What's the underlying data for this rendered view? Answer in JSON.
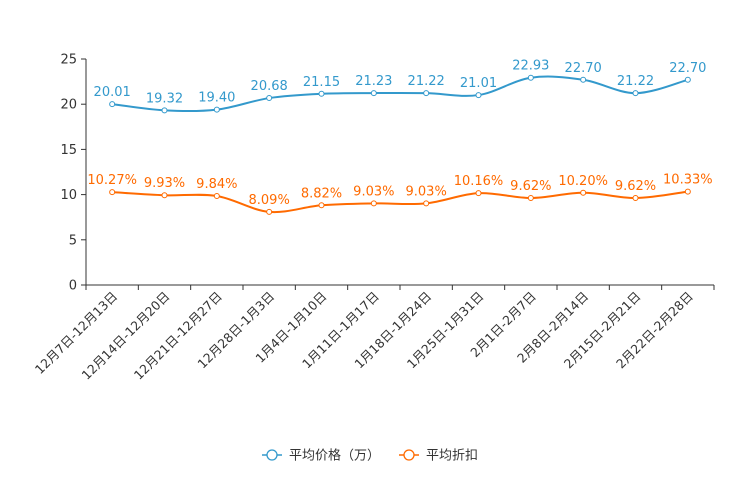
{
  "chart_data": {
    "type": "line",
    "categories": [
      "12月7日-12月13日",
      "12月14日-12月20日",
      "12月21日-12月27日",
      "12月28日-1月3日",
      "1月4日-1月10日",
      "1月11日-1月17日",
      "1月18日-1月24日",
      "1月25日-1月31日",
      "2月1日-2月7日",
      "2月8日-2月14日",
      "2月15日-2月21日",
      "2月22日-2月28日"
    ],
    "ylim": [
      0,
      25
    ],
    "yticks": [
      0,
      5,
      10,
      15,
      20,
      25
    ],
    "series": [
      {
        "name": "平均价格（万）",
        "color": "#3399cc",
        "values": [
          20.01,
          19.32,
          19.4,
          20.68,
          21.15,
          21.23,
          21.22,
          21.01,
          22.93,
          22.7,
          21.22,
          22.7
        ],
        "labels": [
          "20.01",
          "19.32",
          "19.40",
          "20.68",
          "21.15",
          "21.23",
          "21.22",
          "21.01",
          "22.93",
          "22.70",
          "21.22",
          "22.70"
        ]
      },
      {
        "name": "平均折扣",
        "color": "#ff6a00",
        "values": [
          10.27,
          9.93,
          9.84,
          8.09,
          8.82,
          9.03,
          9.03,
          10.16,
          9.62,
          10.2,
          9.62,
          10.33
        ],
        "labels": [
          "10.27%",
          "9.93%",
          "9.84%",
          "8.09%",
          "8.82%",
          "9.03%",
          "9.03%",
          "10.16%",
          "9.62%",
          "10.20%",
          "9.62%",
          "10.33%"
        ]
      }
    ],
    "legend_position": "bottom-center"
  }
}
